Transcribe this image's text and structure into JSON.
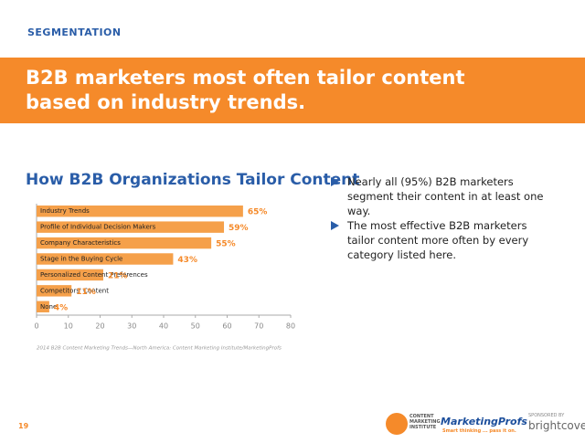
{
  "section": "SEGMENTATION",
  "headline": "B2B marketers most often tailor content based on industry trends.",
  "chart_data": {
    "type": "bar",
    "orientation": "horizontal",
    "title": "How B2B Organizations Tailor Content",
    "categories": [
      "Industry Trends",
      "Profile of Individual Decision Makers",
      "Company Characteristics",
      "Stage in the Buying Cycle",
      "Personalized Content Preferences",
      "Competitors' Content",
      "None"
    ],
    "values": [
      65,
      59,
      55,
      43,
      21,
      11,
      4
    ],
    "value_labels": [
      "65%",
      "59%",
      "55%",
      "43%",
      "21%",
      "11%",
      "4%"
    ],
    "color": "#f5a04a",
    "xlim": [
      0,
      80
    ],
    "xticks": [
      0,
      10,
      20,
      30,
      40,
      50,
      60,
      70,
      80
    ],
    "source": "2014 B2B Content Marketing Trends—North America: Content Marketing Institute/MarketingProfs"
  },
  "bullets": [
    "Nearly all (95%) B2B marketers segment their content in at least one way.",
    "The most effective B2B marketers tailor content more often by every category listed here."
  ],
  "page_number": "19",
  "logos": {
    "cmi": "CONTENT MARKETING INSTITUTE",
    "marketingprofs": "MarketingProfs",
    "marketingprofs_tagline": "Smart thinking ... pass it on.",
    "sponsor_label": "SPONSORED BY",
    "sponsor": "brightcove"
  }
}
